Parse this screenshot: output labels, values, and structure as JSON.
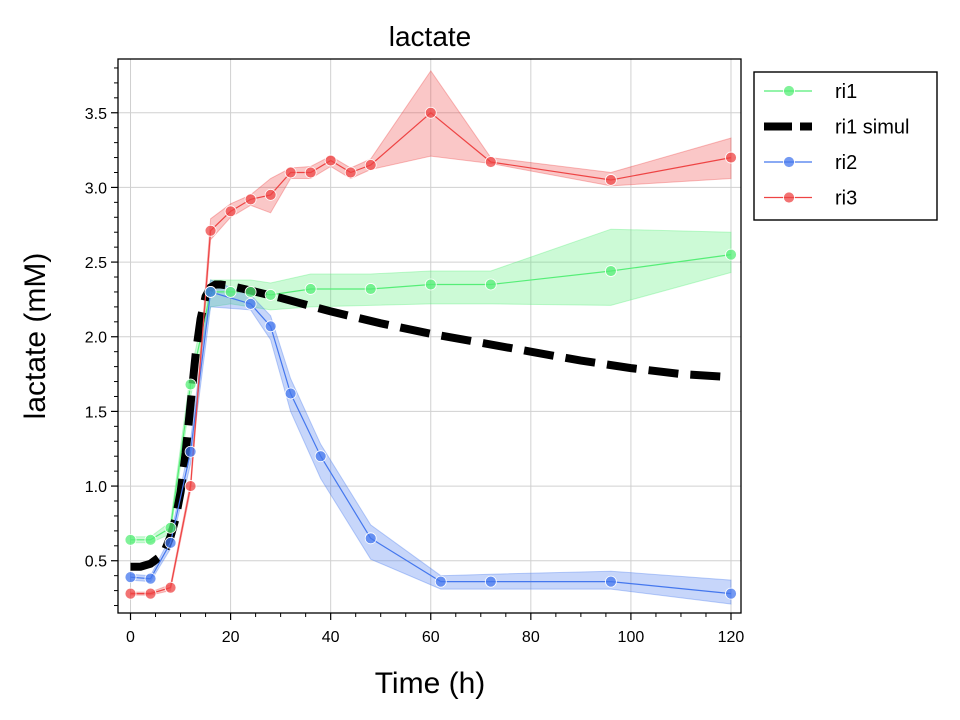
{
  "chart_data": {
    "type": "line",
    "title": "lactate",
    "xlabel": "Time (h)",
    "ylabel": "lactate (mM)",
    "xlim": [
      -2.5,
      122
    ],
    "ylim": [
      0.15,
      3.86
    ],
    "xticks": [
      0,
      20,
      40,
      60,
      80,
      100,
      120
    ],
    "xtick_labels": [
      "0",
      "20",
      "40",
      "60",
      "80",
      "100",
      "120"
    ],
    "yticks": [
      0.5,
      1.0,
      1.5,
      2.0,
      2.5,
      3.0,
      3.5
    ],
    "ytick_labels": [
      "0.5",
      "1.0",
      "1.5",
      "2.0",
      "2.5",
      "3.0",
      "3.5"
    ],
    "grid": true,
    "legend": "outside-top-right",
    "series": [
      {
        "name": "ri1",
        "color": "#55ee77",
        "marker": true,
        "x": [
          0,
          4,
          8,
          12,
          16,
          20,
          24,
          28,
          36,
          48,
          60,
          72,
          96,
          120
        ],
        "y": [
          0.64,
          0.64,
          0.72,
          1.68,
          2.3,
          2.3,
          2.3,
          2.28,
          2.32,
          2.32,
          2.35,
          2.35,
          2.44,
          2.55
        ],
        "lower": [
          0.62,
          0.62,
          0.68,
          1.6,
          2.2,
          2.22,
          2.2,
          2.18,
          2.2,
          2.21,
          2.22,
          2.22,
          2.21,
          2.43
        ],
        "upper": [
          0.66,
          0.66,
          0.76,
          1.76,
          2.38,
          2.38,
          2.38,
          2.36,
          2.42,
          2.42,
          2.44,
          2.44,
          2.72,
          2.7
        ]
      },
      {
        "name": "ri1 simul",
        "color": "#000000",
        "dashed": true,
        "x": [
          0,
          2,
          4,
          6,
          7,
          8,
          9,
          10,
          11,
          12,
          13,
          14,
          15,
          16,
          17,
          18,
          20,
          24,
          30,
          40,
          50,
          60,
          70,
          80,
          90,
          100,
          110,
          120
        ],
        "y": [
          0.46,
          0.46,
          0.48,
          0.53,
          0.58,
          0.66,
          0.78,
          0.96,
          1.22,
          1.55,
          1.88,
          2.12,
          2.27,
          2.33,
          2.35,
          2.35,
          2.34,
          2.31,
          2.26,
          2.17,
          2.09,
          2.02,
          1.96,
          1.9,
          1.84,
          1.79,
          1.75,
          1.73
        ]
      },
      {
        "name": "ri2",
        "color": "#4477ee",
        "marker": true,
        "x": [
          0,
          4,
          8,
          12,
          16,
          24,
          28,
          32,
          38,
          48,
          62,
          72,
          96,
          120
        ],
        "y": [
          0.39,
          0.38,
          0.62,
          1.23,
          2.3,
          2.22,
          2.07,
          1.62,
          1.2,
          0.65,
          0.36,
          0.36,
          0.36,
          0.28
        ],
        "lower": [
          0.37,
          0.36,
          0.58,
          1.15,
          2.2,
          2.18,
          1.98,
          1.5,
          1.05,
          0.51,
          0.31,
          0.31,
          0.31,
          0.21
        ],
        "upper": [
          0.41,
          0.4,
          0.66,
          1.31,
          2.38,
          2.28,
          2.14,
          1.72,
          1.28,
          0.74,
          0.4,
          0.41,
          0.43,
          0.37
        ]
      },
      {
        "name": "ri3",
        "color": "#ee4444",
        "marker": true,
        "x": [
          0,
          4,
          8,
          12,
          16,
          20,
          24,
          28,
          32,
          36,
          40,
          44,
          48,
          60,
          72,
          96,
          120
        ],
        "y": [
          0.28,
          0.28,
          0.32,
          1.0,
          2.71,
          2.84,
          2.92,
          2.95,
          3.1,
          3.1,
          3.18,
          3.1,
          3.15,
          3.5,
          3.17,
          3.05,
          3.2
        ],
        "lower": [
          0.27,
          0.27,
          0.3,
          0.97,
          2.65,
          2.8,
          2.88,
          2.83,
          3.06,
          3.06,
          3.14,
          3.06,
          3.12,
          3.21,
          3.16,
          3.01,
          3.06
        ],
        "upper": [
          0.29,
          0.29,
          0.34,
          1.03,
          2.79,
          2.89,
          2.95,
          3.06,
          3.13,
          3.14,
          3.21,
          3.13,
          3.19,
          3.78,
          3.2,
          3.1,
          3.33
        ]
      }
    ]
  }
}
